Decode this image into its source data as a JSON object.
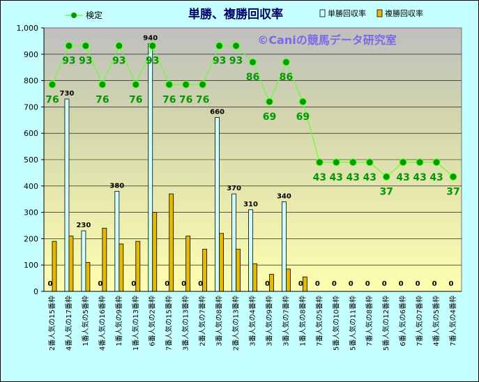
{
  "chart_data": {
    "type": "bar+line",
    "title": "単勝、複勝回収率",
    "watermark": "©Caniの競馬データ研究室",
    "ylim": [
      0,
      1000
    ],
    "yticks": [
      "0",
      "100",
      "200",
      "300",
      "400",
      "500",
      "600",
      "700",
      "800",
      "900",
      "1,000"
    ],
    "legend": {
      "line": "検定",
      "bar1": "単勝回収率",
      "bar2": "複勝回収率"
    },
    "categories": [
      "2番人気の15番枠",
      "4番人気の17番枠",
      "1番人気の5番枠",
      "4番人気の16番枠",
      "1番人気の9番枠",
      "1番人気の13番枠",
      "6番人気の2番枠",
      "7番人気の15番枠",
      "3番人気の13番枠",
      "2番人気の7番枠",
      "3番人気の8番枠",
      "2番人気の13番枠",
      "3番人気の4番枠",
      "3番人気の9番枠",
      "3番人気の7番枠",
      "1番人気の8番枠",
      "7番人気の5番枠",
      "5番人気の10番枠",
      "5番人気の11番枠",
      "7番人気の8番枠",
      "5番人気の12番枠",
      "6番人気の6番枠",
      "7番人気の7番枠",
      "4番人気の5番枠",
      "7番人気の4番枠"
    ],
    "win_return": [
      0,
      730,
      230,
      0,
      380,
      0,
      940,
      0,
      0,
      0,
      660,
      370,
      310,
      0,
      340,
      0,
      0,
      0,
      0,
      0,
      0,
      0,
      0,
      0,
      0
    ],
    "win_labels": [
      "0",
      "730",
      "230",
      "0",
      "380",
      "0",
      "940",
      "0",
      "0",
      "0",
      "660",
      "370",
      "310",
      "0",
      "340",
      "0",
      "0",
      "0",
      "0",
      "0",
      "0",
      "0",
      "0",
      "0",
      "0"
    ],
    "place_return": [
      190,
      210,
      110,
      240,
      180,
      190,
      300,
      370,
      210,
      160,
      220,
      160,
      105,
      65,
      85,
      55,
      0,
      0,
      0,
      0,
      0,
      0,
      0,
      0,
      0
    ],
    "test_values": [
      76,
      93,
      93,
      76,
      93,
      76,
      93,
      76,
      76,
      76,
      93,
      93,
      86,
      69,
      86,
      69,
      43,
      43,
      43,
      43,
      37,
      43,
      43,
      43,
      37
    ],
    "test_plot_values": [
      785,
      932,
      932,
      785,
      932,
      785,
      932,
      785,
      785,
      785,
      932,
      932,
      870,
      720,
      870,
      720,
      490,
      490,
      490,
      490,
      435,
      490,
      490,
      490,
      435
    ],
    "colors": {
      "win_bar": "#cfffff",
      "place_bar": "#e6b800",
      "line": "#66ff33",
      "marker": "#009900",
      "label": "#009900",
      "title": "#000066",
      "watermark": "#7b68ee"
    }
  }
}
